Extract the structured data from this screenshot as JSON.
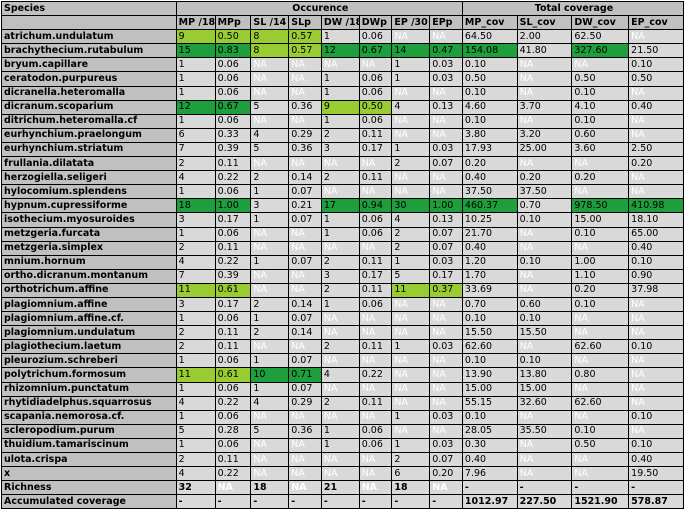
{
  "header": {
    "species_label": "Species",
    "occurence_label": "Occurence",
    "total_coverage_label": "Total coverage",
    "columns": [
      "MP /18",
      "MPp",
      "SL /14",
      "SLp",
      "DW /18",
      "DWp",
      "EP /30",
      "EPp",
      "MP_cov",
      "SL_cov",
      "DW_cov",
      "EP_cov"
    ]
  },
  "rows": [
    {
      "name": "atrichum.undulatum",
      "cells": [
        "9",
        "0.50",
        "8",
        "0.57",
        "1",
        "0.06",
        "NA",
        "NA",
        "64.50",
        "2.00",
        "62.50",
        "NA"
      ],
      "hl": [
        "light",
        "light",
        "light",
        "light",
        "",
        "",
        "",
        "",
        "",
        "",
        "",
        ""
      ]
    },
    {
      "name": "brachythecium.rutabulum",
      "cells": [
        "15",
        "0.83",
        "8",
        "0.57",
        "12",
        "0.67",
        "14",
        "0.47",
        "154.08",
        "41.80",
        "327.60",
        "21.50"
      ],
      "hl": [
        "dark",
        "dark",
        "light",
        "light",
        "dark",
        "dark",
        "dark",
        "dark",
        "dark",
        "",
        "dark",
        ""
      ]
    },
    {
      "name": "bryum.capillare",
      "cells": [
        "1",
        "0.06",
        "NA",
        "NA",
        "NA",
        "NA",
        "1",
        "0.03",
        "0.10",
        "NA",
        "NA",
        "0.10"
      ],
      "hl": [
        "",
        "",
        "",
        "",
        "",
        "",
        "",
        "",
        "",
        "",
        "",
        ""
      ]
    },
    {
      "name": "ceratodon.purpureus",
      "cells": [
        "1",
        "0.06",
        "NA",
        "NA",
        "1",
        "0.06",
        "1",
        "0.03",
        "0.50",
        "NA",
        "0.50",
        "0.50"
      ],
      "hl": [
        "",
        "",
        "",
        "",
        "",
        "",
        "",
        "",
        "",
        "",
        "",
        ""
      ]
    },
    {
      "name": "dicranella.heteromalla",
      "cells": [
        "1",
        "0.06",
        "NA",
        "NA",
        "1",
        "0.06",
        "NA",
        "NA",
        "0.10",
        "NA",
        "0.10",
        "NA"
      ],
      "hl": [
        "",
        "",
        "",
        "",
        "",
        "",
        "",
        "",
        "",
        "",
        "",
        ""
      ]
    },
    {
      "name": "dicranum.scoparium",
      "cells": [
        "12",
        "0.67",
        "5",
        "0.36",
        "9",
        "0.50",
        "4",
        "0.13",
        "4.60",
        "3.70",
        "4.10",
        "0.40"
      ],
      "hl": [
        "dark",
        "dark",
        "",
        "",
        "light",
        "light",
        "",
        "",
        "",
        "",
        "",
        ""
      ]
    },
    {
      "name": "ditrichum.heteromalla.cf",
      "cells": [
        "1",
        "0.06",
        "NA",
        "NA",
        "1",
        "0.06",
        "NA",
        "NA",
        "0.10",
        "NA",
        "0.10",
        "NA"
      ],
      "hl": [
        "",
        "",
        "",
        "",
        "",
        "",
        "",
        "",
        "",
        "",
        "",
        ""
      ]
    },
    {
      "name": "eurhynchium.praelongum",
      "cells": [
        "6",
        "0.33",
        "4",
        "0.29",
        "2",
        "0.11",
        "NA",
        "NA",
        "3.80",
        "3.20",
        "0.60",
        "NA"
      ],
      "hl": [
        "",
        "",
        "",
        "",
        "",
        "",
        "",
        "",
        "",
        "",
        "",
        ""
      ]
    },
    {
      "name": "eurhynchium.striatum",
      "cells": [
        "7",
        "0.39",
        "5",
        "0.36",
        "3",
        "0.17",
        "1",
        "0.03",
        "17.93",
        "25.00",
        "3.60",
        "2.50"
      ],
      "hl": [
        "",
        "",
        "",
        "",
        "",
        "",
        "",
        "",
        "",
        "",
        "",
        ""
      ]
    },
    {
      "name": "frullania.dilatata",
      "cells": [
        "2",
        "0.11",
        "NA",
        "NA",
        "NA",
        "NA",
        "2",
        "0.07",
        "0.20",
        "NA",
        "NA",
        "0.20"
      ],
      "hl": [
        "",
        "",
        "",
        "",
        "",
        "",
        "",
        "",
        "",
        "",
        "",
        ""
      ]
    },
    {
      "name": "herzogiella.seligeri",
      "cells": [
        "4",
        "0.22",
        "2",
        "0.14",
        "2",
        "0.11",
        "NA",
        "NA",
        "0.40",
        "0.20",
        "0.20",
        "NA"
      ],
      "hl": [
        "",
        "",
        "",
        "",
        "",
        "",
        "",
        "",
        "",
        "",
        "",
        ""
      ]
    },
    {
      "name": "hylocomium.splendens",
      "cells": [
        "1",
        "0.06",
        "1",
        "0.07",
        "NA",
        "NA",
        "NA",
        "NA",
        "37.50",
        "37.50",
        "NA",
        "NA"
      ],
      "hl": [
        "",
        "",
        "",
        "",
        "",
        "",
        "",
        "",
        "",
        "",
        "",
        ""
      ]
    },
    {
      "name": "hypnum.cupressiforme",
      "cells": [
        "18",
        "1.00",
        "3",
        "0.21",
        "17",
        "0.94",
        "30",
        "1.00",
        "460.37",
        "0.70",
        "978.50",
        "410.98"
      ],
      "hl": [
        "dark",
        "dark",
        "",
        "",
        "dark",
        "dark",
        "dark",
        "dark",
        "dark",
        "",
        "dark",
        "dark"
      ]
    },
    {
      "name": "isothecium.myosuroides",
      "cells": [
        "3",
        "0.17",
        "1",
        "0.07",
        "1",
        "0.06",
        "4",
        "0.13",
        "10.25",
        "0.10",
        "15.00",
        "18.10"
      ],
      "hl": [
        "",
        "",
        "",
        "",
        "",
        "",
        "",
        "",
        "",
        "",
        "",
        ""
      ]
    },
    {
      "name": "metzgeria.furcata",
      "cells": [
        "1",
        "0.06",
        "NA",
        "NA",
        "1",
        "0.06",
        "2",
        "0.07",
        "21.70",
        "NA",
        "0.10",
        "65.00"
      ],
      "hl": [
        "",
        "",
        "",
        "",
        "",
        "",
        "",
        "",
        "",
        "",
        "",
        ""
      ]
    },
    {
      "name": "metzgeria.simplex",
      "cells": [
        "2",
        "0.11",
        "NA",
        "NA",
        "NA",
        "NA",
        "2",
        "0.07",
        "0.40",
        "NA",
        "NA",
        "0.40"
      ],
      "hl": [
        "",
        "",
        "",
        "",
        "",
        "",
        "",
        "",
        "",
        "",
        "",
        ""
      ]
    },
    {
      "name": "mnium.hornum",
      "cells": [
        "4",
        "0.22",
        "1",
        "0.07",
        "2",
        "0.11",
        "1",
        "0.03",
        "1.20",
        "0.10",
        "1.00",
        "0.10"
      ],
      "hl": [
        "",
        "",
        "",
        "",
        "",
        "",
        "",
        "",
        "",
        "",
        "",
        ""
      ]
    },
    {
      "name": "ortho.dicranum.montanum",
      "cells": [
        "7",
        "0.39",
        "NA",
        "NA",
        "3",
        "0.17",
        "5",
        "0.17",
        "1.70",
        "NA",
        "1.10",
        "0.90"
      ],
      "hl": [
        "",
        "",
        "",
        "",
        "",
        "",
        "",
        "",
        "",
        "",
        "",
        ""
      ]
    },
    {
      "name": "orthotrichum.affine",
      "cells": [
        "11",
        "0.61",
        "NA",
        "NA",
        "2",
        "0.11",
        "11",
        "0.37",
        "33.69",
        "NA",
        "0.20",
        "37.98"
      ],
      "hl": [
        "light",
        "light",
        "",
        "",
        "",
        "",
        "light",
        "light",
        "",
        "",
        "",
        ""
      ]
    },
    {
      "name": "plagiomnium.affine",
      "cells": [
        "3",
        "0.17",
        "2",
        "0.14",
        "1",
        "0.06",
        "NA",
        "NA",
        "0.70",
        "0.60",
        "0.10",
        "NA"
      ],
      "hl": [
        "",
        "",
        "",
        "",
        "",
        "",
        "",
        "",
        "",
        "",
        "",
        ""
      ]
    },
    {
      "name": "plagiomnium.affine.cf.",
      "cells": [
        "1",
        "0.06",
        "1",
        "0.07",
        "NA",
        "NA",
        "NA",
        "NA",
        "0.10",
        "0.10",
        "NA",
        "NA"
      ],
      "hl": [
        "",
        "",
        "",
        "",
        "",
        "",
        "",
        "",
        "",
        "",
        "",
        ""
      ]
    },
    {
      "name": "plagiomnium.undulatum",
      "cells": [
        "2",
        "0.11",
        "2",
        "0.14",
        "NA",
        "NA",
        "NA",
        "NA",
        "15.50",
        "15.50",
        "NA",
        "NA"
      ],
      "hl": [
        "",
        "",
        "",
        "",
        "",
        "",
        "",
        "",
        "",
        "",
        "",
        ""
      ]
    },
    {
      "name": "plagiothecium.laetum",
      "cells": [
        "2",
        "0.11",
        "NA",
        "NA",
        "2",
        "0.11",
        "1",
        "0.03",
        "62.60",
        "NA",
        "62.60",
        "0.10"
      ],
      "hl": [
        "",
        "",
        "",
        "",
        "",
        "",
        "",
        "",
        "",
        "",
        "",
        ""
      ]
    },
    {
      "name": "pleurozium.schreberi",
      "cells": [
        "1",
        "0.06",
        "1",
        "0.07",
        "NA",
        "NA",
        "NA",
        "NA",
        "0.10",
        "0.10",
        "NA",
        "NA"
      ],
      "hl": [
        "",
        "",
        "",
        "",
        "",
        "",
        "",
        "",
        "",
        "",
        "",
        ""
      ]
    },
    {
      "name": "polytrichum.formosum",
      "cells": [
        "11",
        "0.61",
        "10",
        "0.71",
        "4",
        "0.22",
        "NA",
        "NA",
        "13.90",
        "13.80",
        "0.80",
        "NA"
      ],
      "hl": [
        "light",
        "light",
        "dark",
        "dark",
        "",
        "",
        "",
        "",
        "",
        "",
        "",
        ""
      ]
    },
    {
      "name": "rhizomnium.punctatum",
      "cells": [
        "1",
        "0.06",
        "1",
        "0.07",
        "NA",
        "NA",
        "NA",
        "NA",
        "15.00",
        "15.00",
        "NA",
        "NA"
      ],
      "hl": [
        "",
        "",
        "",
        "",
        "",
        "",
        "",
        "",
        "",
        "",
        "",
        ""
      ]
    },
    {
      "name": "rhytidiadelphus.squarrosus",
      "cells": [
        "4",
        "0.22",
        "4",
        "0.29",
        "2",
        "0.11",
        "NA",
        "NA",
        "55.15",
        "32.60",
        "62.60",
        "NA"
      ],
      "hl": [
        "",
        "",
        "",
        "",
        "",
        "",
        "",
        "",
        "",
        "",
        "",
        ""
      ]
    },
    {
      "name": "scapania.nemorosa.cf.",
      "cells": [
        "1",
        "0.06",
        "NA",
        "NA",
        "NA",
        "NA",
        "1",
        "0.03",
        "0.10",
        "NA",
        "NA",
        "0.10"
      ],
      "hl": [
        "",
        "",
        "",
        "",
        "",
        "",
        "",
        "",
        "",
        "",
        "",
        ""
      ]
    },
    {
      "name": "scleropodium.purum",
      "cells": [
        "5",
        "0.28",
        "5",
        "0.36",
        "1",
        "0.06",
        "NA",
        "NA",
        "28.05",
        "35.50",
        "0.10",
        "NA"
      ],
      "hl": [
        "",
        "",
        "",
        "",
        "",
        "",
        "",
        "",
        "",
        "",
        "",
        ""
      ]
    },
    {
      "name": "thuidium.tamariscinum",
      "cells": [
        "1",
        "0.06",
        "NA",
        "NA",
        "1",
        "0.06",
        "1",
        "0.03",
        "0.30",
        "NA",
        "0.50",
        "0.10"
      ],
      "hl": [
        "",
        "",
        "",
        "",
        "",
        "",
        "",
        "",
        "",
        "",
        "",
        ""
      ]
    },
    {
      "name": "ulota.crispa",
      "cells": [
        "2",
        "0.11",
        "NA",
        "NA",
        "NA",
        "NA",
        "2",
        "0.07",
        "0.40",
        "NA",
        "NA",
        "0.40"
      ],
      "hl": [
        "",
        "",
        "",
        "",
        "",
        "",
        "",
        "",
        "",
        "",
        "",
        ""
      ]
    },
    {
      "name": "x",
      "cells": [
        "4",
        "0.22",
        "NA",
        "NA",
        "NA",
        "NA",
        "6",
        "0.20",
        "7.96",
        "NA",
        "NA",
        "19.50"
      ],
      "hl": [
        "",
        "",
        "",
        "",
        "",
        "",
        "",
        "",
        "",
        "",
        "",
        ""
      ]
    }
  ],
  "richness": {
    "label": "Richness",
    "cells": [
      "32",
      "NA",
      "18",
      "NA",
      "21",
      "NA",
      "18",
      "NA",
      "-",
      "-",
      "-",
      "-"
    ]
  },
  "accumulated": {
    "label": "Accumulated coverage",
    "cells": [
      "-",
      "-",
      "-",
      "-",
      "-",
      "-",
      "-",
      "-",
      "1012.97",
      "227.50",
      "1521.90",
      "578.87"
    ]
  },
  "colors": {
    "light": "#99cc33",
    "dark": "#1e9e3c",
    "grid": "#d9d9d9",
    "header": "#c0c0c0"
  }
}
